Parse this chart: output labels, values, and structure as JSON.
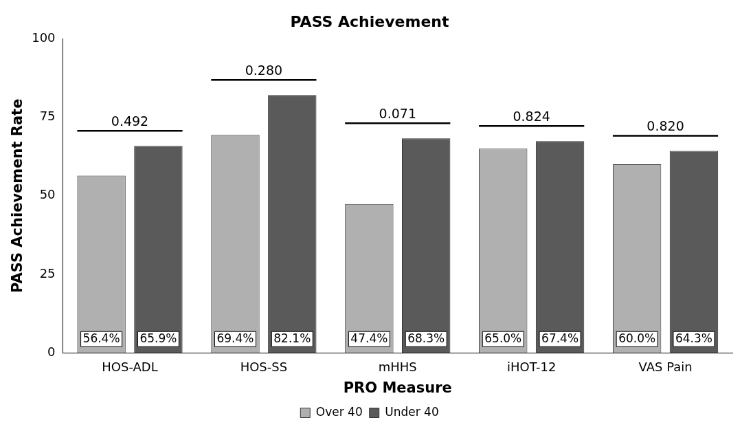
{
  "chart_data": {
    "type": "bar",
    "title": "PASS Achievement",
    "xlabel": "PRO Measure",
    "ylabel": "PASS Achievement Rate",
    "categories": [
      "HOS-ADL",
      "HOS-SS",
      "mHHS",
      "iHOT-12",
      "VAS Pain"
    ],
    "series": [
      {
        "name": "Over 40",
        "color": "#b0b0b0",
        "values": [
          56.4,
          69.4,
          47.4,
          65.0,
          60.0
        ],
        "value_labels": [
          "56.4%",
          "69.4%",
          "47.4%",
          "65.0%",
          "60.0%"
        ]
      },
      {
        "name": "Under 40",
        "color": "#5a5a5a",
        "values": [
          65.9,
          82.1,
          68.3,
          67.4,
          64.3
        ],
        "value_labels": [
          "65.9%",
          "82.1%",
          "68.3%",
          "67.4%",
          "64.3%"
        ]
      }
    ],
    "ylim": [
      0,
      100
    ],
    "yticks": [
      0,
      25,
      50,
      75,
      100
    ],
    "grid": false,
    "legend": "bottom",
    "annotations": [
      "0.492",
      "0.280",
      "0.071",
      "0.824",
      "0.820"
    ]
  }
}
